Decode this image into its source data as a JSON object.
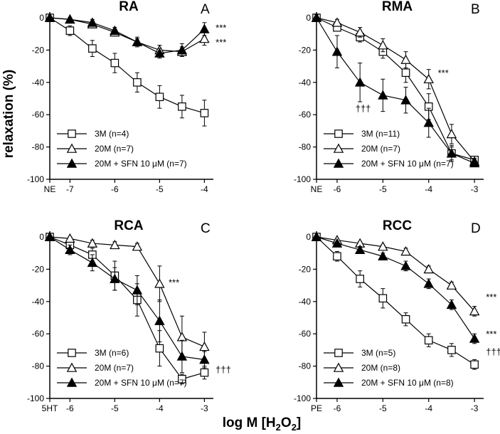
{
  "figure": {
    "ylabel": "relaxation (%)",
    "xlabel_main": "log M [H",
    "xlabel_sub": "2",
    "xlabel_mid": "O",
    "xlabel_sub2": "2",
    "xlabel_end": "]"
  },
  "chart_data": [
    {
      "type": "line",
      "title": "RA",
      "letter": "A",
      "ylim": [
        -100,
        0
      ],
      "yticks": [
        0,
        -20,
        -40,
        -60,
        -80,
        -100
      ],
      "xlim": [
        -7.45,
        -3.8
      ],
      "xticks": [
        {
          "x": -7.45,
          "label": "NE"
        },
        {
          "x": -7,
          "label": "-7"
        },
        {
          "x": -6,
          "label": "-6"
        },
        {
          "x": -5,
          "label": "-5"
        },
        {
          "x": -4,
          "label": "-4"
        }
      ],
      "series": [
        {
          "name": "3M (n=4)",
          "marker": "square-open",
          "x": [
            -7.45,
            -7,
            -6.5,
            -6,
            -5.5,
            -5,
            -4.5,
            -4
          ],
          "y": [
            0,
            -8,
            -19,
            -28,
            -40,
            -49,
            -55,
            -59
          ],
          "err": [
            2,
            3,
            5,
            6,
            6,
            7,
            7,
            8
          ]
        },
        {
          "name": "20M (n=7)",
          "marker": "triangle-open",
          "x": [
            -7.45,
            -7,
            -6.5,
            -6,
            -5.5,
            -5,
            -4.5,
            -4
          ],
          "y": [
            0,
            -1,
            -4,
            -9,
            -15,
            -20,
            -21,
            -13
          ],
          "err": [
            1,
            1,
            2,
            2,
            3,
            3,
            3,
            4
          ]
        },
        {
          "name": "20M + SFN 10 μM (n=7)",
          "marker": "triangle-filled",
          "x": [
            -7.45,
            -7,
            -6.5,
            -6,
            -5.5,
            -5,
            -4.5,
            -4
          ],
          "y": [
            0,
            -1,
            -3,
            -8,
            -15,
            -22,
            -20,
            -7
          ],
          "err": [
            1,
            1,
            2,
            2,
            2,
            3,
            4,
            4
          ]
        }
      ],
      "annotations": [
        {
          "text": "***",
          "x": -3.75,
          "y": -6
        },
        {
          "text": "***",
          "x": -3.75,
          "y": -15
        }
      ]
    },
    {
      "type": "line",
      "title": "RMA",
      "letter": "B",
      "ylim": [
        -100,
        0
      ],
      "yticks": [
        0,
        -20,
        -40,
        -60,
        -80,
        -100
      ],
      "xlim": [
        -6.45,
        -2.8
      ],
      "xticks": [
        {
          "x": -6.45,
          "label": "NE"
        },
        {
          "x": -6,
          "label": "-6"
        },
        {
          "x": -5,
          "label": "-5"
        },
        {
          "x": -4,
          "label": "-4"
        },
        {
          "x": -3,
          "label": "-3"
        }
      ],
      "series": [
        {
          "name": "3M (n=11)",
          "marker": "square-open",
          "x": [
            -6.45,
            -6,
            -5.5,
            -5,
            -4.5,
            -4,
            -3.5,
            -3
          ],
          "y": [
            0,
            -6,
            -12,
            -21,
            -34,
            -55,
            -84,
            -88
          ],
          "err": [
            1,
            2,
            3,
            4,
            6,
            8,
            5,
            2
          ]
        },
        {
          "name": "20M (n=7)",
          "marker": "triangle-open",
          "x": [
            -6.45,
            -6,
            -5.5,
            -5,
            -4.5,
            -4,
            -3.5,
            -3
          ],
          "y": [
            0,
            -3,
            -9,
            -17,
            -26,
            -38,
            -72,
            -89
          ],
          "err": [
            1,
            2,
            3,
            4,
            5,
            6,
            6,
            2
          ]
        },
        {
          "name": "20M + SFN 10 μM (n=7)",
          "marker": "triangle-filled",
          "x": [
            -6.45,
            -6,
            -5.5,
            -5,
            -4.5,
            -4,
            -3.5,
            -3
          ],
          "y": [
            0,
            -21,
            -40,
            -48,
            -51,
            -65,
            -84,
            -90
          ],
          "err": [
            2,
            10,
            12,
            10,
            8,
            9,
            4,
            2
          ]
        }
      ],
      "annotations": [
        {
          "text": "***",
          "x": -3.8,
          "y": -34
        },
        {
          "text": "†††",
          "x": -5.6,
          "y": -56
        }
      ]
    },
    {
      "type": "line",
      "title": "RCA",
      "letter": "C",
      "ylim": [
        -100,
        0
      ],
      "yticks": [
        0,
        -20,
        -40,
        -60,
        -80,
        -100
      ],
      "xlim": [
        -6.45,
        -2.8
      ],
      "xticks": [
        {
          "x": -6.45,
          "label": "5HT"
        },
        {
          "x": -6,
          "label": "-6"
        },
        {
          "x": -5,
          "label": "-5"
        },
        {
          "x": -4,
          "label": "-4"
        },
        {
          "x": -3,
          "label": "-3"
        }
      ],
      "series": [
        {
          "name": "3M (n=6)",
          "marker": "square-open",
          "x": [
            -6.45,
            -6,
            -5.5,
            -5,
            -4.5,
            -4,
            -3.5,
            -3
          ],
          "y": [
            0,
            -5,
            -11,
            -24,
            -39,
            -69,
            -88,
            -84
          ],
          "err": [
            1,
            2,
            4,
            9,
            10,
            11,
            3,
            4
          ]
        },
        {
          "name": "20M (n=7)",
          "marker": "triangle-open",
          "x": [
            -6.45,
            -6,
            -5.5,
            -5,
            -4.5,
            -4,
            -3.5,
            -3
          ],
          "y": [
            0,
            -1,
            -4,
            -5,
            -6,
            -29,
            -62,
            -68
          ],
          "err": [
            1,
            1,
            2,
            2,
            2,
            11,
            13,
            9
          ]
        },
        {
          "name": "20M + SFN 10 μM (n=7)",
          "marker": "triangle-filled",
          "x": [
            -6.45,
            -6,
            -5.5,
            -5,
            -4.5,
            -4,
            -3.5,
            -3
          ],
          "y": [
            0,
            -8,
            -16,
            -26,
            -33,
            -52,
            -74,
            -76
          ],
          "err": [
            1,
            3,
            5,
            7,
            9,
            13,
            10,
            5
          ]
        }
      ],
      "annotations": [
        {
          "text": "***",
          "x": -3.8,
          "y": -28
        },
        {
          "text": "†††",
          "x": -2.75,
          "y": -82
        }
      ]
    },
    {
      "type": "line",
      "title": "RCC",
      "letter": "D",
      "ylim": [
        -100,
        0
      ],
      "yticks": [
        0,
        -20,
        -40,
        -60,
        -80,
        -100
      ],
      "xlim": [
        -6.45,
        -2.8
      ],
      "xticks": [
        {
          "x": -6.45,
          "label": "PE"
        },
        {
          "x": -6,
          "label": "-6"
        },
        {
          "x": -5,
          "label": "-5"
        },
        {
          "x": -4,
          "label": "-4"
        },
        {
          "x": -3,
          "label": "-3"
        }
      ],
      "series": [
        {
          "name": "3M (n=5)",
          "marker": "square-open",
          "x": [
            -6.45,
            -6,
            -5.5,
            -5,
            -4.5,
            -4,
            -3.5,
            -3
          ],
          "y": [
            0,
            -12,
            -26,
            -38,
            -51,
            -64,
            -70,
            -79
          ],
          "err": [
            1,
            3,
            5,
            6,
            4,
            4,
            4,
            3
          ]
        },
        {
          "name": "20M (n=8)",
          "marker": "triangle-open",
          "x": [
            -6.45,
            -6,
            -5.5,
            -5,
            -4.5,
            -4,
            -3.5,
            -3
          ],
          "y": [
            0,
            -2,
            -4,
            -6,
            -9,
            -20,
            -30,
            -46
          ],
          "err": [
            1,
            1,
            1,
            1,
            2,
            2,
            2,
            3
          ]
        },
        {
          "name": "20M + SFN 10 μM (n=8)",
          "marker": "triangle-filled",
          "x": [
            -6.45,
            -6,
            -5.5,
            -5,
            -4.5,
            -4,
            -3.5,
            -3
          ],
          "y": [
            0,
            -4,
            -8,
            -12,
            -18,
            -29,
            -42,
            -63
          ],
          "err": [
            1,
            1,
            2,
            2,
            3,
            3,
            3,
            3
          ]
        }
      ],
      "annotations": [
        {
          "text": "***",
          "x": -2.75,
          "y": -37
        },
        {
          "text": "***",
          "x": -2.75,
          "y": -60
        },
        {
          "text": "†††",
          "x": -2.75,
          "y": -71
        }
      ]
    }
  ]
}
